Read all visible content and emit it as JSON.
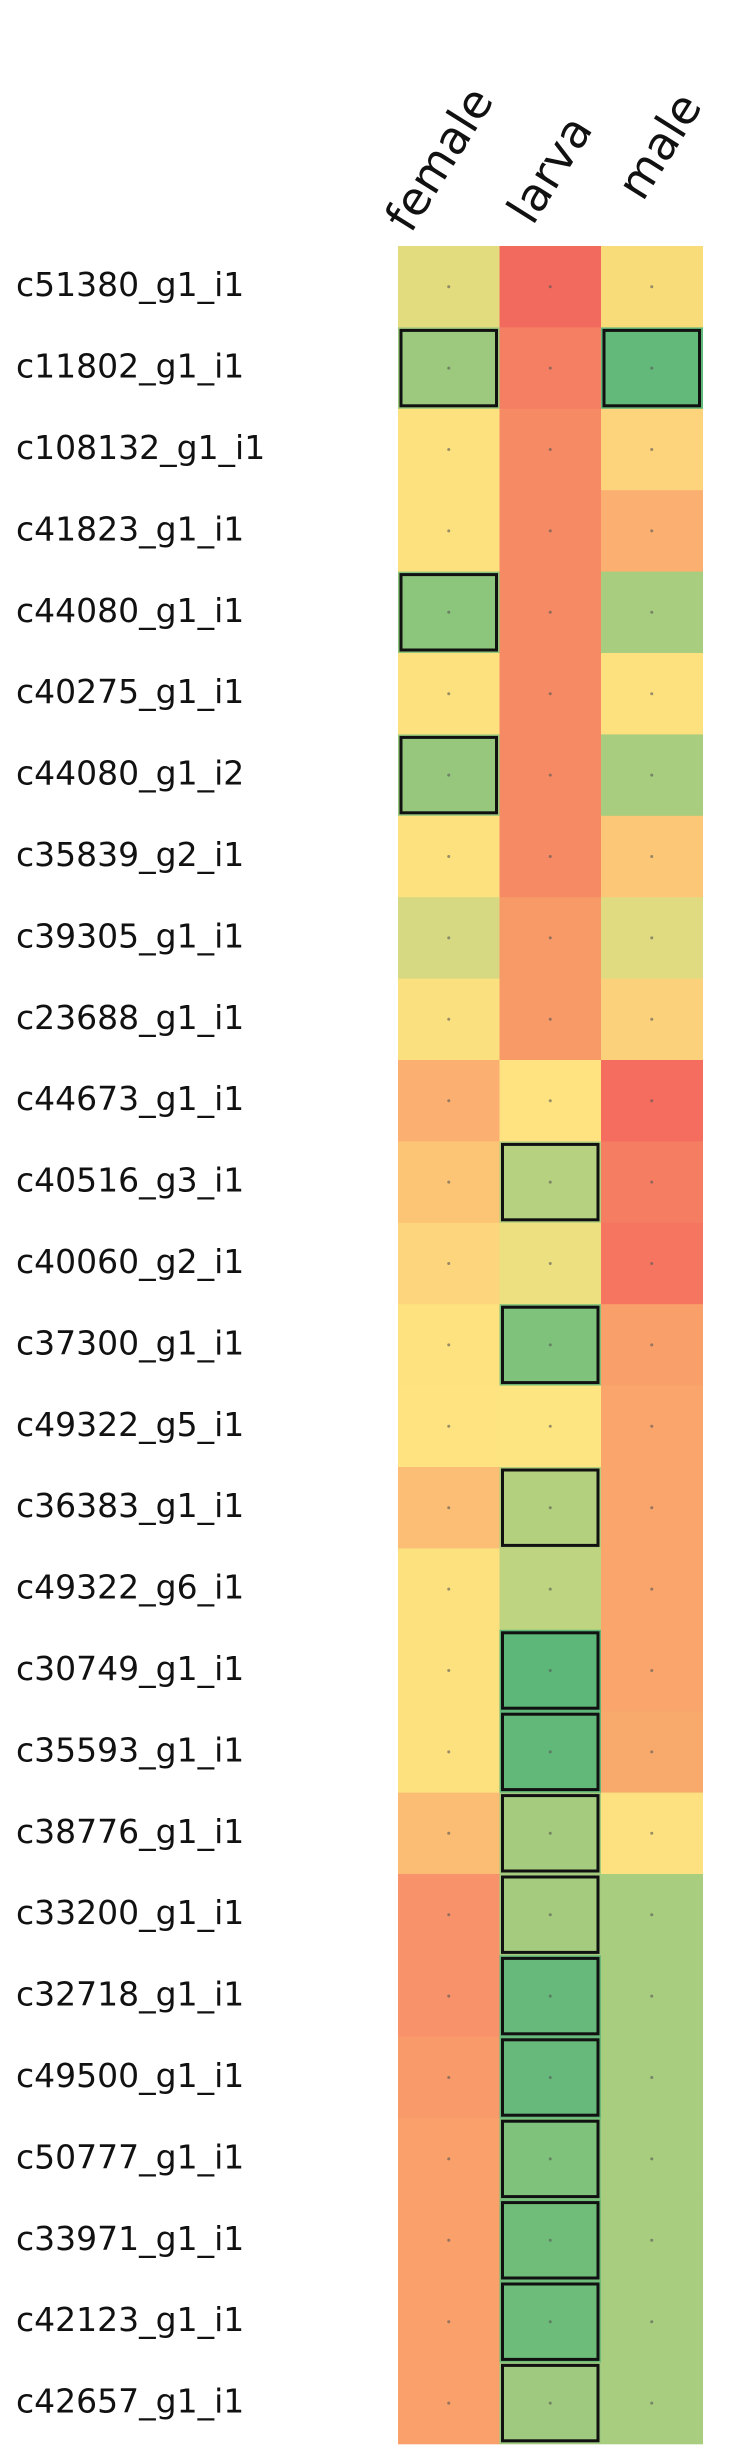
{
  "chart_data": {
    "type": "heatmap",
    "columns": [
      "female",
      "larva",
      "male"
    ],
    "rows": [
      "c51380_g1_i1",
      "c11802_g1_i1",
      "c108132_g1_i1",
      "c41823_g1_i1",
      "c44080_g1_i1",
      "c40275_g1_i1",
      "c44080_g1_i2",
      "c35839_g2_i1",
      "c39305_g1_i1",
      "c23688_g1_i1",
      "c44673_g1_i1",
      "c40516_g3_i1",
      "c40060_g2_i1",
      "c37300_g1_i1",
      "c49322_g5_i1",
      "c36383_g1_i1",
      "c49322_g6_i1",
      "c30749_g1_i1",
      "c35593_g1_i1",
      "c38776_g1_i1",
      "c33200_g1_i1",
      "c32718_g1_i1",
      "c49500_g1_i1",
      "c50777_g1_i1",
      "c33971_g1_i1",
      "c42123_g1_i1",
      "c42657_g1_i1"
    ],
    "colors": [
      [
        "#e3dc7e",
        "#f26a5e",
        "#f8dc7a"
      ],
      [
        "#9cc97e",
        "#f47f62",
        "#63b97a"
      ],
      [
        "#fde17f",
        "#f58a64",
        "#fdd47c"
      ],
      [
        "#fde17f",
        "#f58a64",
        "#fbb071"
      ],
      [
        "#8cc57c",
        "#f58a64",
        "#a9cd7e"
      ],
      [
        "#fde17f",
        "#f58a64",
        "#fde17f"
      ],
      [
        "#96c77d",
        "#f58a64",
        "#a8cd7e"
      ],
      [
        "#fde17f",
        "#f58a64",
        "#fcc877"
      ],
      [
        "#d6d981",
        "#f79a67",
        "#e0db80"
      ],
      [
        "#fbe07f",
        "#f79a67",
        "#fbd27b"
      ],
      [
        "#fbb071",
        "#fee380",
        "#f46d5f"
      ],
      [
        "#fcc475",
        "#b6d17f",
        "#f57d62"
      ],
      [
        "#fcd57c",
        "#ede080",
        "#f57561"
      ],
      [
        "#fee27f",
        "#7ec27b",
        "#f9a06a"
      ],
      [
        "#fee380",
        "#fde681",
        "#f9a56b"
      ],
      [
        "#fbbe74",
        "#b3d07f",
        "#f9a56b"
      ],
      [
        "#fde17f",
        "#bed480",
        "#f9a56b"
      ],
      [
        "#fde17f",
        "#5cb779",
        "#f9a56b"
      ],
      [
        "#fde17f",
        "#62b879",
        "#f8aa6c"
      ],
      [
        "#fbbc73",
        "#a4cb7e",
        "#fde07f"
      ],
      [
        "#f7926a",
        "#a4cb7e",
        "#a8cd7e"
      ],
      [
        "#f7926a",
        "#66b97a",
        "#a8cd7e"
      ],
      [
        "#f99a6b",
        "#66b97a",
        "#a8cd7e"
      ],
      [
        "#f9a06b",
        "#7ec27b",
        "#a8cd7e"
      ],
      [
        "#f9a06b",
        "#70bd7a",
        "#a8cd7e"
      ],
      [
        "#f9a06b",
        "#6dbc7a",
        "#a8cd7e"
      ],
      [
        "#f9a06b",
        "#9ec97e",
        "#a8cd7e"
      ]
    ],
    "outlined": [
      [
        false,
        false,
        false
      ],
      [
        true,
        false,
        true
      ],
      [
        false,
        false,
        false
      ],
      [
        false,
        false,
        false
      ],
      [
        true,
        false,
        false
      ],
      [
        false,
        false,
        false
      ],
      [
        true,
        false,
        false
      ],
      [
        false,
        false,
        false
      ],
      [
        false,
        false,
        false
      ],
      [
        false,
        false,
        false
      ],
      [
        false,
        false,
        false
      ],
      [
        false,
        true,
        false
      ],
      [
        false,
        false,
        false
      ],
      [
        false,
        true,
        false
      ],
      [
        false,
        false,
        false
      ],
      [
        false,
        true,
        false
      ],
      [
        false,
        false,
        false
      ],
      [
        false,
        true,
        false
      ],
      [
        false,
        true,
        false
      ],
      [
        false,
        true,
        false
      ],
      [
        false,
        true,
        false
      ],
      [
        false,
        true,
        false
      ],
      [
        false,
        true,
        false
      ],
      [
        false,
        true,
        false
      ],
      [
        false,
        true,
        false
      ],
      [
        false,
        true,
        false
      ],
      [
        false,
        true,
        false
      ]
    ]
  }
}
